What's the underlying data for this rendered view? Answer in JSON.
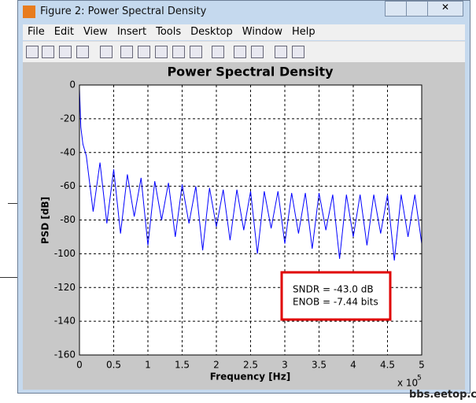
{
  "window": {
    "title": "Figure 2: Power Spectral Density",
    "menu": [
      "File",
      "Edit",
      "View",
      "Insert",
      "Tools",
      "Desktop",
      "Window",
      "Help"
    ]
  },
  "watermark": "bbs.eetop.cn",
  "chart_data": {
    "type": "line",
    "title": "Power Spectral Density",
    "x_label": "Frequency [Hz]",
    "y_label": "PSD [dB]",
    "x_exponent_base": "x 10",
    "x_exponent": "5",
    "annotations": [
      "SNDR = -43.0 dB",
      "ENOB = -7.44 bits"
    ],
    "xlim": [
      0,
      500000
    ],
    "ylim": [
      -160,
      0
    ],
    "grid": true,
    "xticks": [
      0,
      {
        "value": 50000,
        "label": "0.5"
      },
      {
        "value": 100000,
        "label": "1"
      },
      {
        "value": 150000,
        "label": "1.5"
      },
      {
        "value": 200000,
        "label": "2"
      },
      {
        "value": 250000,
        "label": "2.5"
      },
      {
        "value": 300000,
        "label": "3"
      },
      {
        "value": 350000,
        "label": "3.5"
      },
      {
        "value": 400000,
        "label": "4"
      },
      {
        "value": 450000,
        "label": "4.5"
      },
      {
        "value": 500000,
        "label": "5"
      }
    ],
    "yticks": [
      -160,
      -140,
      -120,
      -100,
      -80,
      -60,
      -40,
      -20,
      0
    ],
    "x": [
      0,
      2000,
      5000,
      10000,
      20000,
      30000,
      40000,
      50000,
      60000,
      70000,
      80000,
      90000,
      100000,
      110000,
      120000,
      130000,
      140000,
      150000,
      160000,
      170000,
      180000,
      190000,
      200000,
      210000,
      220000,
      230000,
      240000,
      250000,
      260000,
      270000,
      280000,
      290000,
      300000,
      310000,
      320000,
      330000,
      340000,
      350000,
      360000,
      370000,
      380000,
      390000,
      400000,
      410000,
      420000,
      430000,
      440000,
      450000,
      460000,
      470000,
      480000,
      490000,
      500000
    ],
    "series": [
      {
        "name": "PSD",
        "color": "#0000ff",
        "values": [
          -2,
          -25,
          -35,
          -42,
          -75,
          -46,
          -82,
          -50,
          -88,
          -53,
          -78,
          -55,
          -95,
          -57,
          -80,
          -58,
          -90,
          -59,
          -82,
          -60,
          -98,
          -61,
          -84,
          -62,
          -92,
          -62,
          -86,
          -63,
          -100,
          -63,
          -85,
          -63,
          -94,
          -64,
          -88,
          -64,
          -97,
          -64,
          -86,
          -65,
          -103,
          -65,
          -90,
          -65,
          -95,
          -65,
          -88,
          -65,
          -104,
          -65,
          -90,
          -65,
          -94
        ]
      }
    ]
  }
}
